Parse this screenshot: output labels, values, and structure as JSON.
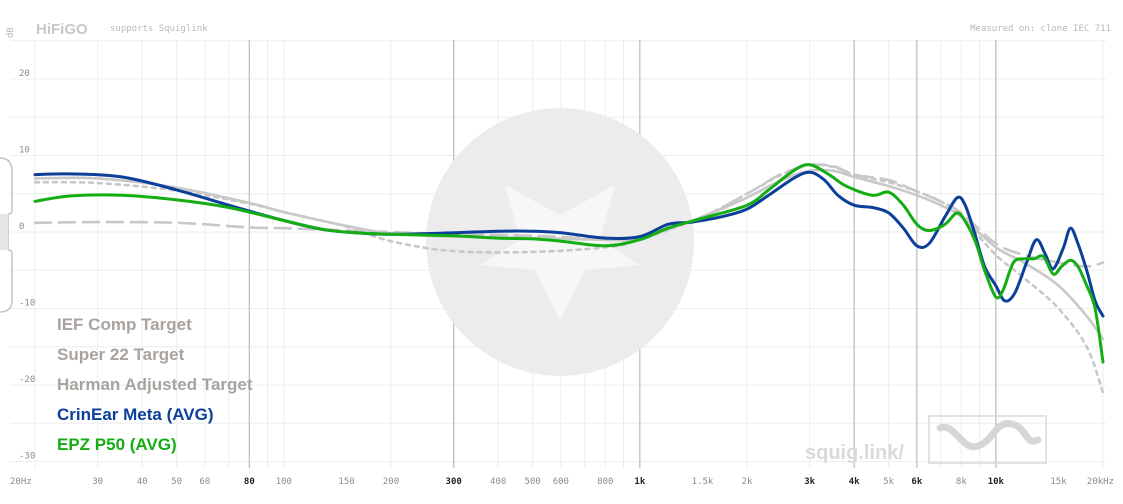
{
  "header": {
    "brand": "HiFiGO",
    "supports": "supports Squiglink",
    "measured": "Measured on: clone IEC 711"
  },
  "watermark": {
    "text": "squig.link/"
  },
  "colors": {
    "target_gray": "#a8a39f",
    "crinear": "#0b3f9a",
    "epz": "#14ad14",
    "grid": "#eeeeee",
    "major_grid": "#bcbcbc"
  },
  "chart_data": {
    "type": "line",
    "title": "",
    "xlabel": "",
    "ylabel": "dB",
    "x_scale": "log",
    "xlim": [
      20,
      20000
    ],
    "ylim": [
      -31,
      25
    ],
    "x_tick_labels": [
      {
        "v": 20,
        "t": "20Hz",
        "bold": false
      },
      {
        "v": 30,
        "t": "30",
        "bold": false
      },
      {
        "v": 40,
        "t": "40",
        "bold": false
      },
      {
        "v": 50,
        "t": "50",
        "bold": false
      },
      {
        "v": 60,
        "t": "60",
        "bold": false
      },
      {
        "v": 80,
        "t": "80",
        "bold": true
      },
      {
        "v": 100,
        "t": "100",
        "bold": false
      },
      {
        "v": 150,
        "t": "150",
        "bold": false
      },
      {
        "v": 200,
        "t": "200",
        "bold": false
      },
      {
        "v": 300,
        "t": "300",
        "bold": true
      },
      {
        "v": 400,
        "t": "400",
        "bold": false
      },
      {
        "v": 500,
        "t": "500",
        "bold": false
      },
      {
        "v": 600,
        "t": "600",
        "bold": false
      },
      {
        "v": 800,
        "t": "800",
        "bold": false
      },
      {
        "v": 1000,
        "t": "1k",
        "bold": true
      },
      {
        "v": 1500,
        "t": "1.5k",
        "bold": false
      },
      {
        "v": 2000,
        "t": "2k",
        "bold": false
      },
      {
        "v": 3000,
        "t": "3k",
        "bold": true
      },
      {
        "v": 4000,
        "t": "4k",
        "bold": true
      },
      {
        "v": 5000,
        "t": "5k",
        "bold": false
      },
      {
        "v": 6000,
        "t": "6k",
        "bold": true
      },
      {
        "v": 8000,
        "t": "8k",
        "bold": false
      },
      {
        "v": 10000,
        "t": "10k",
        "bold": true
      },
      {
        "v": 15000,
        "t": "15k",
        "bold": false
      },
      {
        "v": 20000,
        "t": "20kHz",
        "bold": false
      }
    ],
    "major_x_lines": [
      80,
      300,
      1000,
      4000,
      6000,
      10000
    ],
    "y_ticks": [
      {
        "v": 20,
        "t": "20"
      },
      {
        "v": 10,
        "t": "10"
      },
      {
        "v": 0,
        "t": "0"
      },
      {
        "v": -10,
        "t": "-10"
      },
      {
        "v": -20,
        "t": "-20"
      },
      {
        "v": -30,
        "t": "-30"
      }
    ],
    "legend_entries": [
      {
        "name": "IEF Comp Target",
        "color": "#a8a39f"
      },
      {
        "name": "Super 22 Target",
        "color": "#a8a39f"
      },
      {
        "name": "Harman Adjusted Target",
        "color": "#a8a39f"
      },
      {
        "name": "CrinEar Meta (AVG)",
        "color": "#0b3f9a"
      },
      {
        "name": "EPZ P50 (AVG)",
        "color": "#14ad14"
      }
    ],
    "series": [
      {
        "name": "IEF Comp Target",
        "color": "#c8c8c8",
        "dash": "16,8",
        "points": [
          [
            20,
            1.2
          ],
          [
            30,
            1.3
          ],
          [
            50,
            1.2
          ],
          [
            80,
            0.6
          ],
          [
            100,
            0.5
          ],
          [
            150,
            0.2
          ],
          [
            200,
            0
          ],
          [
            300,
            -0.3
          ],
          [
            500,
            -0.5
          ],
          [
            800,
            -0.9
          ],
          [
            1000,
            -0.7
          ],
          [
            1500,
            2
          ],
          [
            2000,
            5
          ],
          [
            2500,
            7.6
          ],
          [
            3000,
            8.7
          ],
          [
            3500,
            8.6
          ],
          [
            4000,
            7.5
          ],
          [
            5000,
            6.8
          ],
          [
            6000,
            5.3
          ],
          [
            7000,
            4
          ],
          [
            8000,
            2.5
          ],
          [
            10000,
            -1.5
          ],
          [
            12000,
            -3
          ],
          [
            15000,
            -4
          ],
          [
            18000,
            -4.5
          ],
          [
            20000,
            -4
          ]
        ]
      },
      {
        "name": "Super 22 Target",
        "color": "#c8c8c8",
        "dash": "4,5",
        "points": [
          [
            20,
            6.5
          ],
          [
            30,
            6.4
          ],
          [
            50,
            5.4
          ],
          [
            80,
            3.7
          ],
          [
            100,
            2.6
          ],
          [
            150,
            0.7
          ],
          [
            200,
            -1.2
          ],
          [
            300,
            -2.5
          ],
          [
            500,
            -2.6
          ],
          [
            800,
            -2
          ],
          [
            1000,
            -1
          ],
          [
            1500,
            2
          ],
          [
            2000,
            5
          ],
          [
            2500,
            7.5
          ],
          [
            3000,
            8.8
          ],
          [
            3500,
            8.5
          ],
          [
            4000,
            7.5
          ],
          [
            5000,
            6.5
          ],
          [
            6000,
            5.3
          ],
          [
            7000,
            4
          ],
          [
            8000,
            2
          ],
          [
            10000,
            -3
          ],
          [
            12000,
            -6
          ],
          [
            15000,
            -10
          ],
          [
            18000,
            -15
          ],
          [
            20000,
            -21
          ]
        ]
      },
      {
        "name": "Harman Adjusted Target",
        "color": "#c8c8c8",
        "dash": "",
        "points": [
          [
            20,
            7
          ],
          [
            30,
            7
          ],
          [
            50,
            5.8
          ],
          [
            80,
            3.8
          ],
          [
            100,
            2.6
          ],
          [
            150,
            0.8
          ],
          [
            200,
            -0.2
          ],
          [
            300,
            -0.6
          ],
          [
            500,
            -0.8
          ],
          [
            800,
            -1
          ],
          [
            1000,
            -0.8
          ],
          [
            1500,
            2
          ],
          [
            2000,
            4.5
          ],
          [
            2500,
            6.8
          ],
          [
            3000,
            8
          ],
          [
            3500,
            8
          ],
          [
            4000,
            7.2
          ],
          [
            5000,
            6
          ],
          [
            6000,
            4.8
          ],
          [
            7000,
            3.5
          ],
          [
            8000,
            2
          ],
          [
            10000,
            -2
          ],
          [
            12000,
            -4
          ],
          [
            15000,
            -7
          ],
          [
            18000,
            -11
          ],
          [
            20000,
            -14
          ]
        ]
      },
      {
        "name": "CrinEar Meta (AVG)",
        "color": "#0b3f9a",
        "dash": "",
        "points": [
          [
            20,
            7.5
          ],
          [
            25,
            7.6
          ],
          [
            35,
            7.2
          ],
          [
            50,
            5.5
          ],
          [
            70,
            3.5
          ],
          [
            100,
            1.5
          ],
          [
            130,
            0.3
          ],
          [
            160,
            -0.1
          ],
          [
            200,
            -0.3
          ],
          [
            300,
            -0.1
          ],
          [
            400,
            0.1
          ],
          [
            500,
            0.1
          ],
          [
            600,
            -0.1
          ],
          [
            800,
            -0.8
          ],
          [
            1000,
            -0.6
          ],
          [
            1200,
            1
          ],
          [
            1400,
            1.3
          ],
          [
            1700,
            2
          ],
          [
            2000,
            3
          ],
          [
            2300,
            4.8
          ],
          [
            2700,
            7
          ],
          [
            3000,
            7.8
          ],
          [
            3300,
            6.8
          ],
          [
            3600,
            4.8
          ],
          [
            4000,
            3.5
          ],
          [
            4500,
            3.2
          ],
          [
            5000,
            2.5
          ],
          [
            5500,
            0.5
          ],
          [
            6000,
            -1.8
          ],
          [
            6500,
            -1.5
          ],
          [
            7200,
            2
          ],
          [
            7800,
            4.5
          ],
          [
            8200,
            3.5
          ],
          [
            8700,
            0
          ],
          [
            9300,
            -4.5
          ],
          [
            10000,
            -7
          ],
          [
            10600,
            -9
          ],
          [
            11300,
            -8
          ],
          [
            12200,
            -4
          ],
          [
            13000,
            -1
          ],
          [
            13800,
            -3
          ],
          [
            14500,
            -4.8
          ],
          [
            15500,
            -2
          ],
          [
            16200,
            0.5
          ],
          [
            17000,
            -1.5
          ],
          [
            18000,
            -5
          ],
          [
            19000,
            -9
          ],
          [
            20000,
            -11
          ]
        ]
      },
      {
        "name": "EPZ P50 (AVG)",
        "color": "#14ad14",
        "dash": "",
        "points": [
          [
            20,
            4
          ],
          [
            25,
            4.7
          ],
          [
            35,
            4.8
          ],
          [
            50,
            4.2
          ],
          [
            70,
            3.2
          ],
          [
            100,
            1.5
          ],
          [
            130,
            0.3
          ],
          [
            160,
            -0.1
          ],
          [
            200,
            -0.3
          ],
          [
            300,
            -0.5
          ],
          [
            400,
            -0.8
          ],
          [
            500,
            -0.9
          ],
          [
            600,
            -1.2
          ],
          [
            800,
            -1.8
          ],
          [
            1000,
            -1
          ],
          [
            1200,
            0.5
          ],
          [
            1500,
            1.8
          ],
          [
            2000,
            3.5
          ],
          [
            2300,
            5.5
          ],
          [
            2700,
            8
          ],
          [
            3000,
            8.8
          ],
          [
            3400,
            7.5
          ],
          [
            3800,
            6
          ],
          [
            4500,
            4.8
          ],
          [
            5000,
            5.2
          ],
          [
            5500,
            3.5
          ],
          [
            6000,
            1
          ],
          [
            6500,
            0.2
          ],
          [
            7200,
            1
          ],
          [
            7800,
            2.5
          ],
          [
            8300,
            1
          ],
          [
            8800,
            -1.5
          ],
          [
            9300,
            -5
          ],
          [
            10000,
            -8.5
          ],
          [
            10500,
            -7.5
          ],
          [
            11200,
            -4
          ],
          [
            12000,
            -3.5
          ],
          [
            12800,
            -3.5
          ],
          [
            13600,
            -3.2
          ],
          [
            14500,
            -5.5
          ],
          [
            15300,
            -4.5
          ],
          [
            16200,
            -3.7
          ],
          [
            17000,
            -4.5
          ],
          [
            18000,
            -7
          ],
          [
            19000,
            -10
          ],
          [
            20000,
            -17
          ]
        ]
      }
    ]
  }
}
